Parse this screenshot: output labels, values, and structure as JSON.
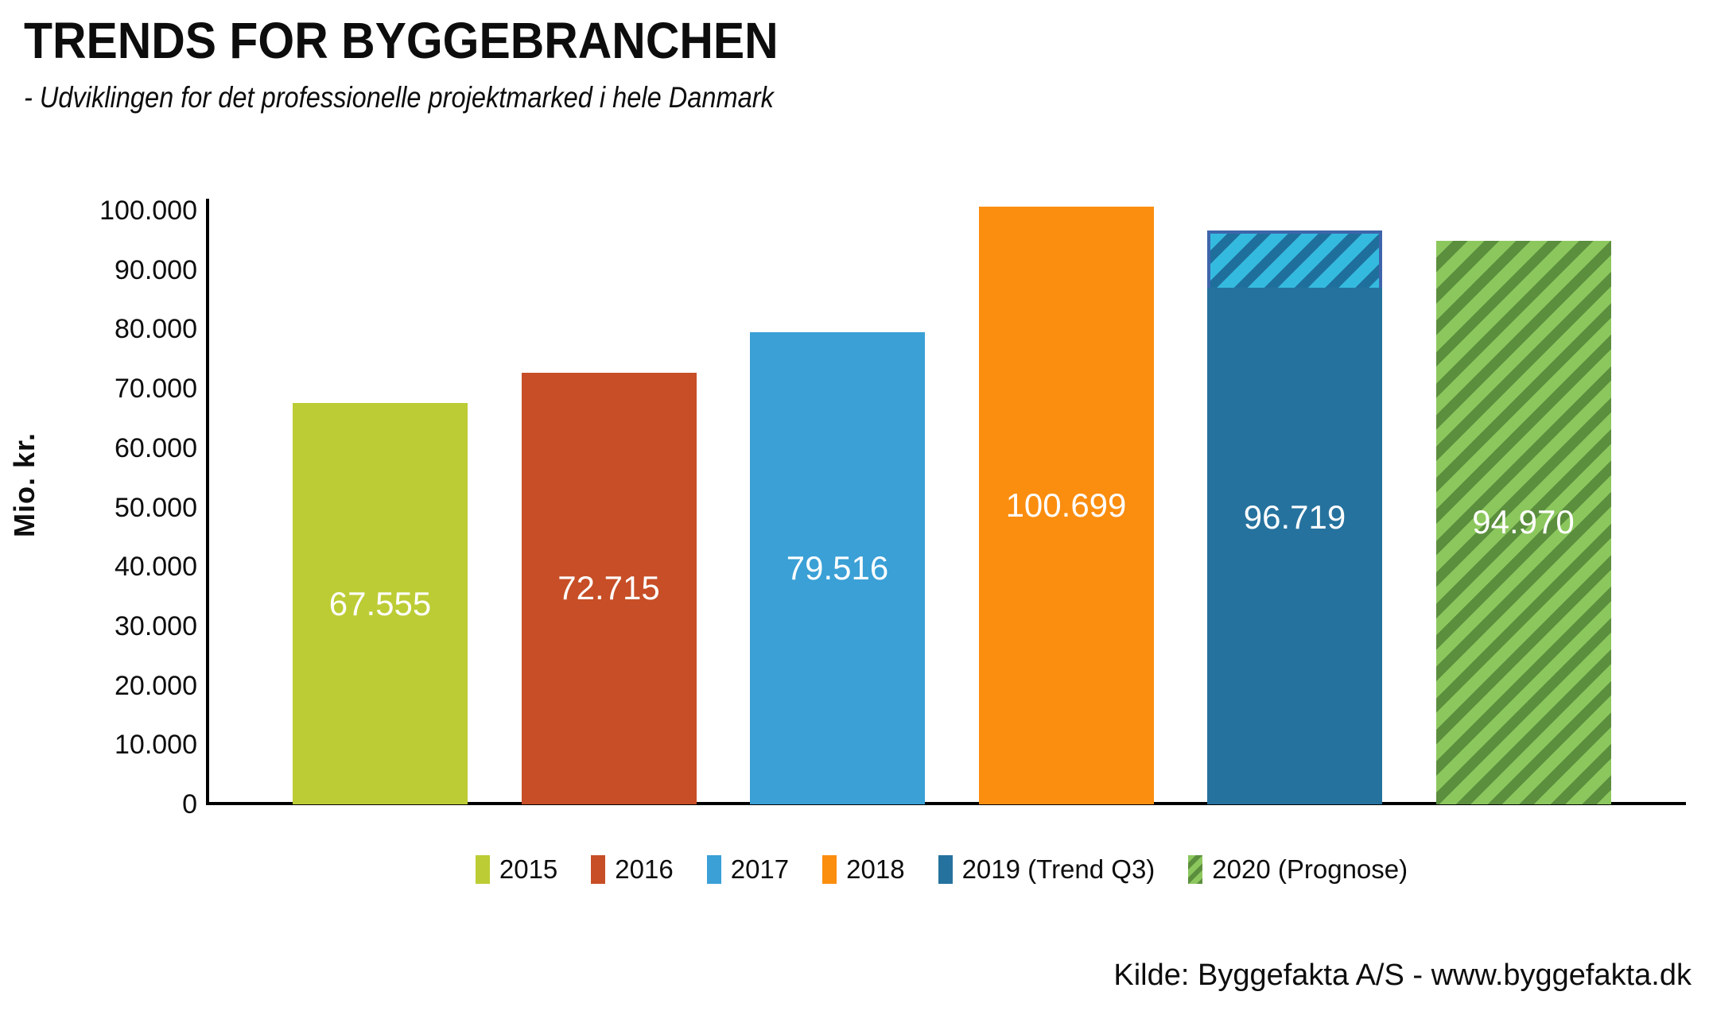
{
  "header": {
    "title": "TRENDS FOR BYGGEBRANCHEN",
    "subtitle": "- Udviklingen for det professionelle projektmarked i hele Danmark"
  },
  "source": {
    "text": "Kilde: Byggefakta A/S - www.byggefakta.dk"
  },
  "chart_data": {
    "type": "bar",
    "title": "TRENDS FOR BYGGEBRANCHEN",
    "subtitle": "- Udviklingen for det professionelle projektmarked i hele Danmark",
    "ylabel": "Mio. kr.",
    "xlabel": "",
    "ylim": [
      0,
      100000
    ],
    "ytick_step": 10000,
    "ytick_labels": [
      "0",
      "10.000",
      "20.000",
      "30.000",
      "40.000",
      "50.000",
      "60.000",
      "70.000",
      "80.000",
      "90.000",
      "100.000"
    ],
    "grid": false,
    "legend_position": "bottom",
    "categories": [
      "2015",
      "2016",
      "2017",
      "2018",
      "2019 (Trend Q3)",
      "2020 (Prognose)"
    ],
    "values": [
      67555,
      72715,
      79516,
      100699,
      96719,
      94970
    ],
    "bars": [
      {
        "year": "2015",
        "value": 67555,
        "label": "67.555",
        "pattern": "solid",
        "color": "#BCCC34"
      },
      {
        "year": "2016",
        "value": 72715,
        "label": "72.715",
        "pattern": "solid",
        "color": "#C74E26"
      },
      {
        "year": "2017",
        "value": 79516,
        "label": "79.516",
        "pattern": "solid",
        "color": "#3AA0D6"
      },
      {
        "year": "2018",
        "value": 100699,
        "label": "100.699",
        "pattern": "solid",
        "color": "#FB8D0F"
      },
      {
        "year": "2019 (Trend Q3)",
        "value": 96719,
        "label": "96.719",
        "pattern": "hatch_top",
        "color": "#26729E",
        "cap_from_value": 87000,
        "cap_light": "#35BADF",
        "cap_dark": "#1F6F9D",
        "cap_border": "#3E65AC"
      },
      {
        "year": "2020 (Prognose)",
        "value": 94970,
        "label": "94.970",
        "pattern": "hatch_full",
        "color": "#8CC75E",
        "hatch_light": "#8CC75E",
        "hatch_dark": "#5B8F3D"
      }
    ],
    "legend_items": [
      {
        "label": "2015",
        "color": "#BCCC34",
        "pattern": "solid"
      },
      {
        "label": "2016",
        "color": "#C74E26",
        "pattern": "solid"
      },
      {
        "label": "2017",
        "color": "#3AA0D6",
        "pattern": "solid"
      },
      {
        "label": "2018",
        "color": "#FB8D0F",
        "pattern": "solid"
      },
      {
        "label": "2019 (Trend Q3)",
        "color": "#26729E",
        "pattern": "solid"
      },
      {
        "label": "2020 (Prognose)",
        "color": "#8CC75E",
        "pattern": "hatch",
        "hatch_dark": "#5B8F3D"
      }
    ],
    "axis_color": "#000000",
    "bar_label_color": "#ffffff"
  }
}
